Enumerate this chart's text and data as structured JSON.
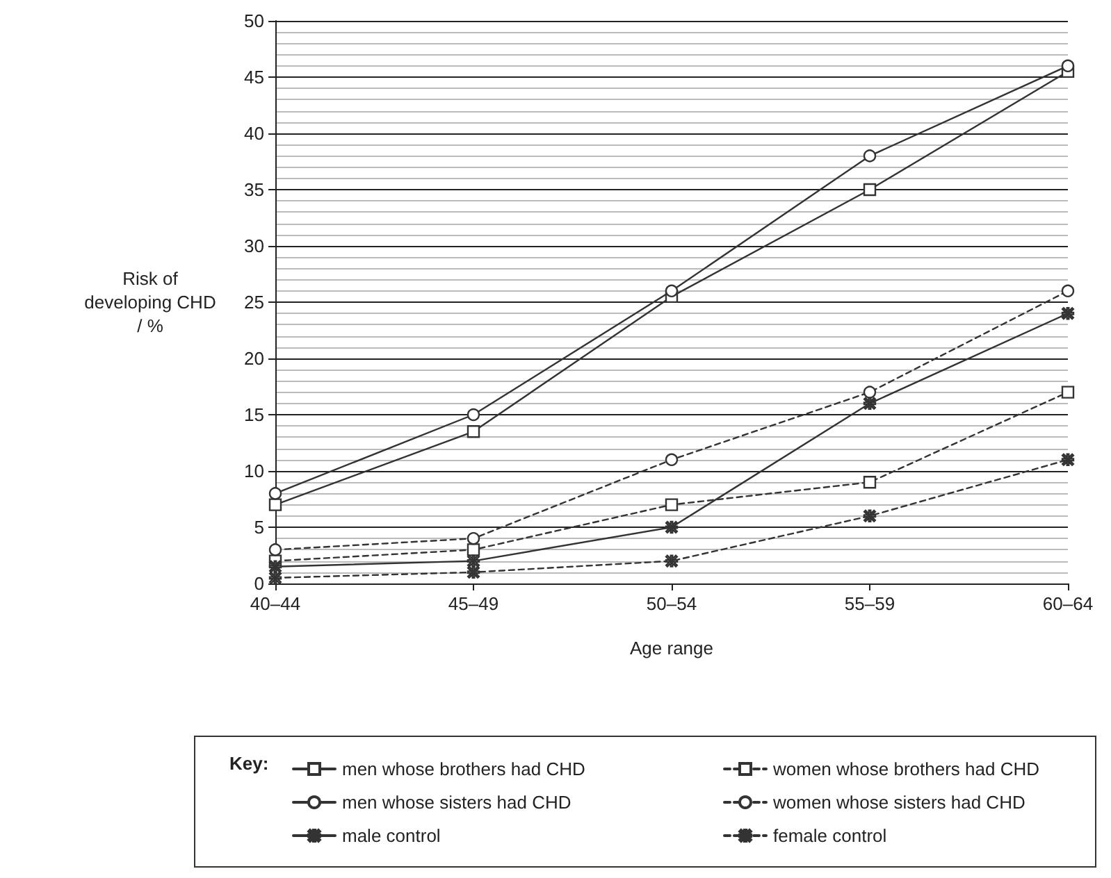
{
  "chart_data": {
    "type": "line",
    "xlabel": "Age range",
    "ylabel": "Risk of\ndeveloping CHD\n/ %",
    "legend_title": "Key:",
    "categories": [
      "40–44",
      "45–49",
      "50–54",
      "55–59",
      "60–64"
    ],
    "series": [
      {
        "name": "men whose brothers had CHD",
        "color": "#333333",
        "marker": "square",
        "line_style": "solid",
        "values": [
          7,
          13.5,
          25.5,
          35,
          45.5
        ]
      },
      {
        "name": "women whose brothers had CHD",
        "color": "#333333",
        "marker": "square",
        "line_style": "dashed",
        "values": [
          2,
          3,
          7,
          9,
          17
        ]
      },
      {
        "name": "men whose sisters had CHD",
        "color": "#333333",
        "marker": "circle",
        "line_style": "solid",
        "values": [
          8,
          15,
          26,
          38,
          46
        ]
      },
      {
        "name": "women whose sisters had CHD",
        "color": "#333333",
        "marker": "circle",
        "line_style": "dashed",
        "values": [
          3,
          4,
          11,
          17,
          26
        ]
      },
      {
        "name": "male control",
        "color": "#333333",
        "marker": "star",
        "line_style": "solid",
        "values": [
          1.5,
          2,
          5,
          16,
          24
        ]
      },
      {
        "name": "female control",
        "color": "#333333",
        "marker": "star",
        "line_style": "dashed",
        "values": [
          0.5,
          1,
          2,
          6,
          11
        ]
      }
    ],
    "ylim": [
      0,
      50
    ],
    "yticks": [
      0,
      5,
      10,
      15,
      20,
      25,
      30,
      35,
      40,
      45,
      50
    ],
    "grid": "y",
    "legend": "bottom"
  }
}
